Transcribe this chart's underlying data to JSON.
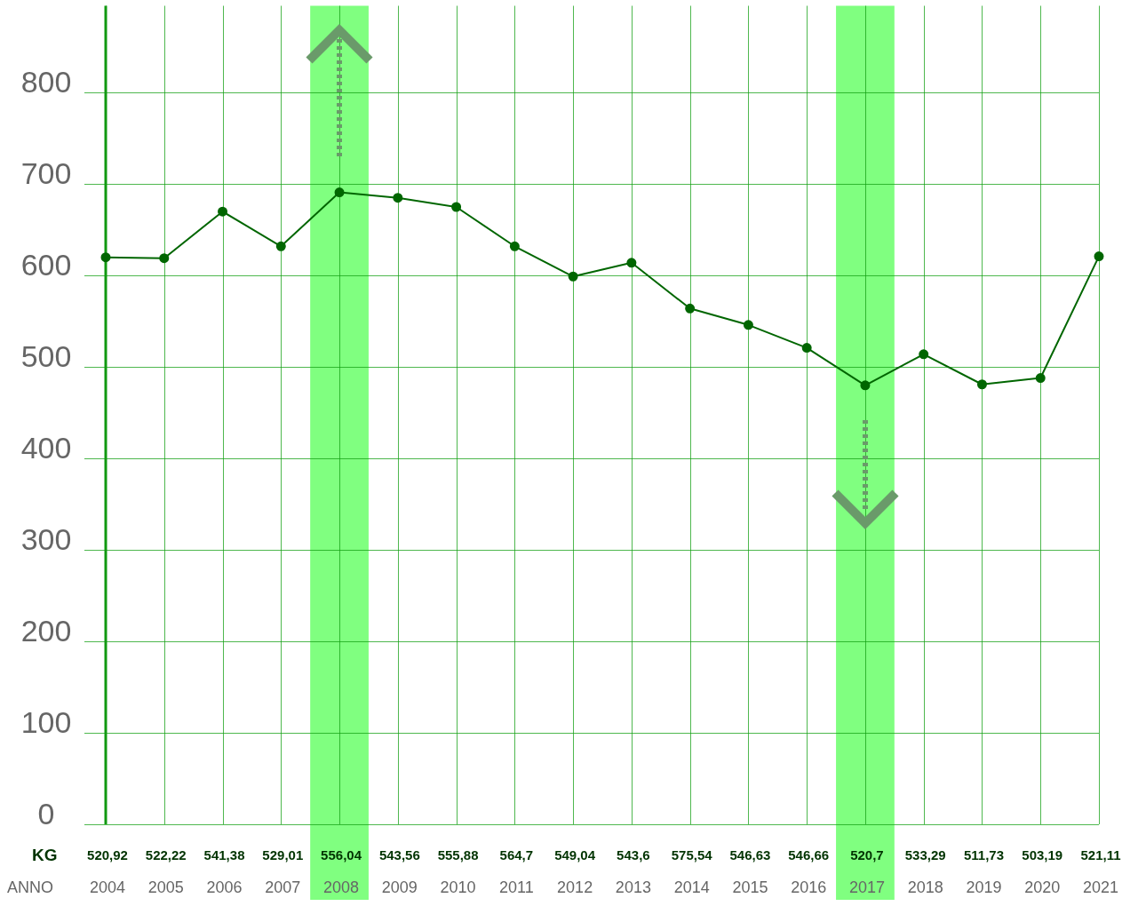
{
  "chart_data": {
    "type": "line",
    "xlabel": "ANNO",
    "ylabel": "KG",
    "categories": [
      "2004",
      "2005",
      "2006",
      "2007",
      "2008",
      "2009",
      "2010",
      "2011",
      "2012",
      "2013",
      "2014",
      "2015",
      "2016",
      "2017",
      "2018",
      "2019",
      "2020",
      "2021"
    ],
    "series": [
      {
        "color": "#006600",
        "values": [
          620,
          619,
          670,
          632,
          691,
          685,
          675,
          632,
          599,
          614,
          564,
          546,
          521,
          480,
          514,
          481,
          488,
          621
        ]
      }
    ],
    "annotations": [
      "520,92",
      "522,22",
      "541,38",
      "529,01",
      "556,04",
      "543,56",
      "555,88",
      "564,7",
      "549,04",
      "543,6",
      "575,54",
      "546,63",
      "546,66",
      "520,7",
      "533,29",
      "511,73",
      "503,19",
      "521,11"
    ],
    "ylim": [
      0,
      895
    ],
    "yticks": [
      0,
      100,
      200,
      300,
      400,
      500,
      600,
      700,
      800
    ],
    "grid": true,
    "marker": "circle",
    "line_style": "solid",
    "bands": [
      {
        "axis": "x",
        "from": "2008",
        "to": "2008",
        "color": "#80ff80"
      },
      {
        "axis": "x",
        "from": "2017",
        "to": "2017",
        "color": "#80ff80"
      }
    ]
  }
}
